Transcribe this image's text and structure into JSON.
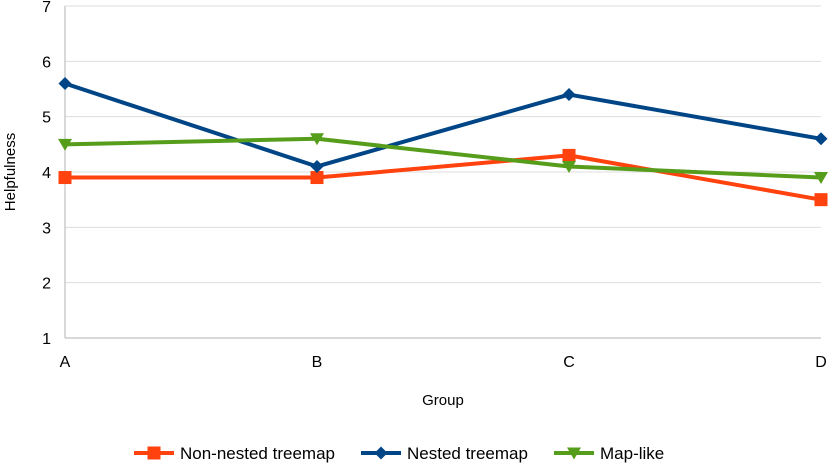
{
  "chart_data": {
    "type": "line",
    "title": "",
    "xlabel": "Group",
    "ylabel": "Helpfulness",
    "categories": [
      "A",
      "B",
      "C",
      "D"
    ],
    "ylim": [
      1,
      7
    ],
    "yticks": [
      1,
      2,
      3,
      4,
      5,
      6,
      7
    ],
    "grid": true,
    "legend_position": "bottom",
    "series": [
      {
        "name": "Non-nested treemap",
        "values": [
          3.9,
          3.9,
          4.3,
          3.5
        ],
        "color": "#ff420e",
        "marker": "square"
      },
      {
        "name": "Nested treemap",
        "values": [
          5.6,
          4.1,
          5.4,
          4.6
        ],
        "color": "#004586",
        "marker": "diamond"
      },
      {
        "name": "Map-like",
        "values": [
          4.5,
          4.6,
          4.1,
          3.9
        ],
        "color": "#579d1c",
        "marker": "triangle-down"
      }
    ]
  }
}
